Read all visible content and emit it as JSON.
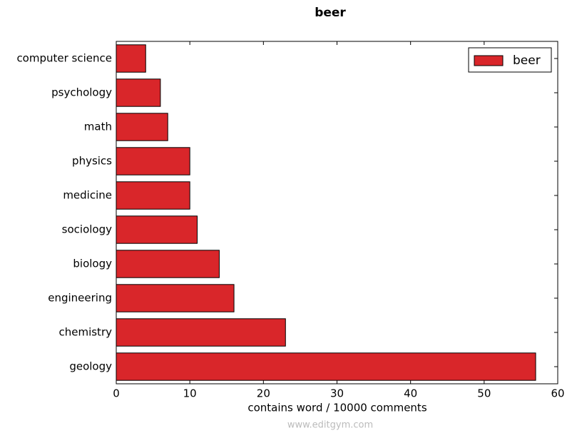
{
  "chart_data": {
    "type": "barh",
    "title": "beer",
    "xlabel": "contains word / 10000 comments",
    "categories": [
      "computer science",
      "psychology",
      "math",
      "physics",
      "medicine",
      "sociology",
      "biology",
      "engineering",
      "chemistry",
      "geology"
    ],
    "series": [
      {
        "name": "beer",
        "color": "#d9262a",
        "values": [
          4,
          6,
          7,
          10,
          10,
          11,
          14,
          16,
          23,
          57
        ]
      }
    ],
    "xlim": [
      0,
      60
    ],
    "xticks": [
      0,
      10,
      20,
      30,
      40,
      50,
      60
    ],
    "legend": "upper right",
    "watermark": "www.editgym.com"
  }
}
